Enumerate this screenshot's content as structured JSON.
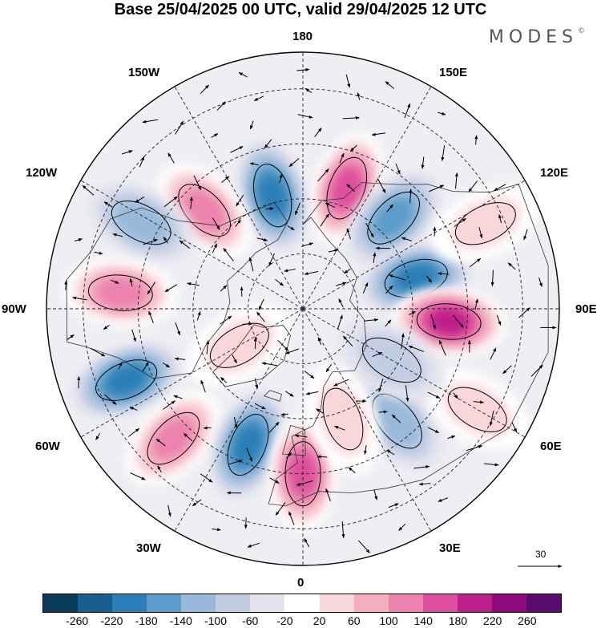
{
  "title": "Base 25/04/2025 00 UTC, valid 29/04/2025 12 UTC",
  "brand": {
    "name": "MODES",
    "mark": "©"
  },
  "longitude_labels": {
    "top": "180",
    "bottom": "0",
    "left": "90W",
    "right": "90E",
    "upper_left": "150W",
    "upper_right": "150E",
    "left_upper": "120W",
    "right_upper": "120E",
    "left_lower": "60W",
    "right_lower": "60E",
    "lower_left": "30W",
    "lower_right": "30E"
  },
  "reference_vector": {
    "value": "30"
  },
  "colorbar": {
    "colors": [
      "#0d3b5c",
      "#165f8f",
      "#2a7fb6",
      "#5b9ccb",
      "#98b9da",
      "#c2cde3",
      "#e3e3ee",
      "#ffffff",
      "#f8d6da",
      "#f3aec0",
      "#ec82ad",
      "#dd4f9c",
      "#bd1e88",
      "#8f0a7a",
      "#5b0a6e"
    ],
    "tick_labels": [
      "-260",
      "-220",
      "-180",
      "-140",
      "-100",
      "-60",
      "-20",
      "20",
      "60",
      "100",
      "140",
      "180",
      "220",
      "260"
    ]
  },
  "map_data": {
    "field": "anomaly",
    "anomalies": [
      {
        "lon": 160,
        "lat": 55,
        "value": 180
      },
      {
        "lon": -165,
        "lat": 58,
        "value": -200
      },
      {
        "lon": 135,
        "lat": 55,
        "value": -140
      },
      {
        "lon": -135,
        "lat": 52,
        "value": 140
      },
      {
        "lon": -118,
        "lat": 40,
        "value": -120
      },
      {
        "lon": 105,
        "lat": 58,
        "value": -200
      },
      {
        "lon": 85,
        "lat": 50,
        "value": 240
      },
      {
        "lon": -95,
        "lat": 40,
        "value": 160
      },
      {
        "lon": -68,
        "lat": 38,
        "value": -200
      },
      {
        "lon": -45,
        "lat": 40,
        "value": 160
      },
      {
        "lon": -22,
        "lat": 50,
        "value": -200
      },
      {
        "lon": 0,
        "lat": 45,
        "value": 180
      },
      {
        "lon": 40,
        "lat": 50,
        "value": -120
      },
      {
        "lon": 20,
        "lat": 58,
        "value": 80
      },
      {
        "lon": 60,
        "lat": 35,
        "value": 60
      },
      {
        "lon": 115,
        "lat": 35,
        "value": 60
      },
      {
        "lon": -60,
        "lat": 70,
        "value": 60
      },
      {
        "lon": 60,
        "lat": 62,
        "value": -80
      }
    ]
  }
}
